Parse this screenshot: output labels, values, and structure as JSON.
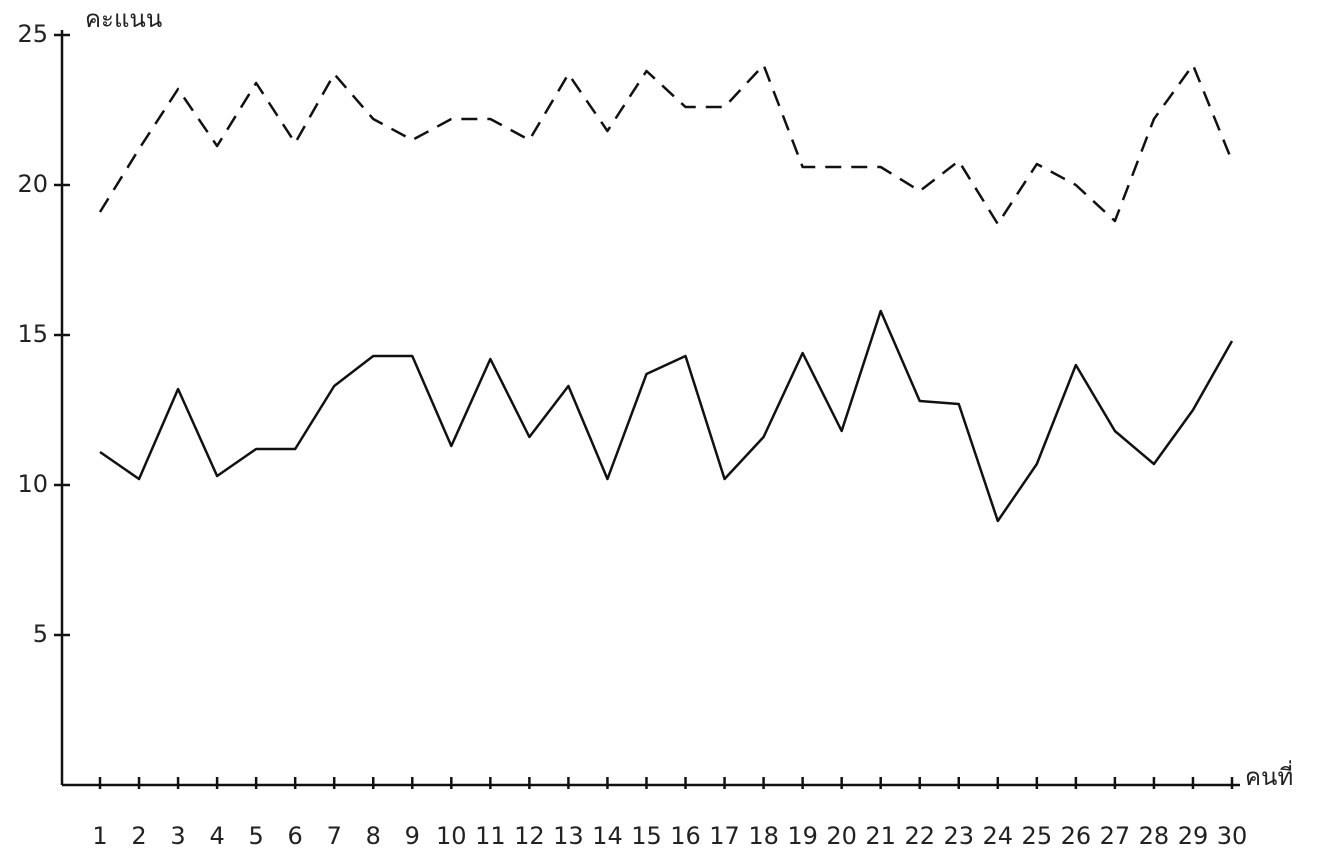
{
  "chart_data": {
    "type": "line",
    "y_label": "คะแนน",
    "x_label": "คนที่",
    "categories": [
      "1",
      "2",
      "3",
      "4",
      "5",
      "6",
      "7",
      "8",
      "9",
      "10",
      "11",
      "12",
      "13",
      "14",
      "15",
      "16",
      "17",
      "18",
      "19",
      "20",
      "21",
      "22",
      "23",
      "24",
      "25",
      "26",
      "27",
      "28",
      "29",
      "30"
    ],
    "series": [
      {
        "color": "#111111",
        "style": "dashed",
        "values": [
          19.1,
          21.2,
          23.2,
          21.3,
          23.4,
          21.4,
          23.7,
          22.2,
          21.5,
          22.2,
          22.2,
          21.5,
          23.7,
          21.8,
          23.8,
          22.6,
          22.6,
          24,
          20.6,
          20.6,
          20.6,
          19.8,
          20.8,
          18.7,
          20.7,
          20,
          18.8,
          22.2,
          24,
          20.8
        ]
      },
      {
        "color": "#111111",
        "style": "solid",
        "values": [
          11.1,
          10.2,
          13.2,
          10.3,
          11.2,
          11.2,
          13.3,
          14.3,
          14.3,
          11.3,
          14.2,
          11.6,
          13.3,
          10.2,
          13.7,
          14.3,
          10.2,
          11.6,
          14.4,
          11.8,
          15.8,
          12.8,
          12.7,
          8.8,
          10.7,
          14,
          11.8,
          10.7,
          12.5,
          14.8
        ]
      }
    ],
    "ylim": [
      0,
      25
    ],
    "yticks": [
      5,
      10,
      15,
      20,
      25
    ]
  }
}
